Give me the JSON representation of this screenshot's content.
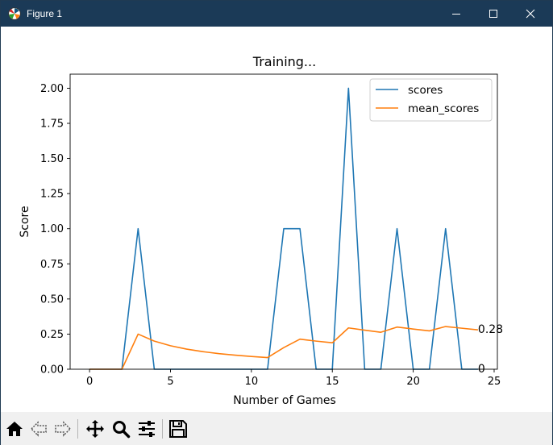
{
  "window": {
    "title": "Figure 1",
    "app_icon": "matplotlib-icon",
    "controls": [
      "minimize-icon",
      "maximize-icon",
      "close-icon"
    ]
  },
  "toolbar": {
    "buttons": [
      "home-icon",
      "back-arrow-icon",
      "forward-arrow-icon",
      "pan-move-icon",
      "zoom-magnifier-icon",
      "configure-subplots-icon",
      "save-floppy-icon"
    ]
  },
  "chart_data": {
    "type": "line",
    "title": "Training...",
    "xlabel": "Number of Games",
    "ylabel": "Score",
    "xlim": [
      -1.2,
      25.2
    ],
    "ylim": [
      0,
      2.1
    ],
    "xticks": [
      0,
      5,
      10,
      15,
      20,
      25
    ],
    "xtick_labels": [
      "0",
      "5",
      "10",
      "15",
      "20",
      "25"
    ],
    "yticks": [
      0,
      0.25,
      0.5,
      0.75,
      1.0,
      1.25,
      1.5,
      1.75,
      2.0
    ],
    "ytick_labels": [
      "0.00",
      "0.25",
      "0.50",
      "0.75",
      "1.00",
      "1.25",
      "1.50",
      "1.75",
      "2.00"
    ],
    "grid": false,
    "legend_position": "top-right",
    "x": [
      0,
      1,
      2,
      3,
      4,
      5,
      6,
      7,
      8,
      9,
      10,
      11,
      12,
      13,
      14,
      15,
      16,
      17,
      18,
      19,
      20,
      21,
      22,
      23,
      24
    ],
    "series": [
      {
        "name": "scores",
        "color": "#1f77b4",
        "values": [
          0,
          0,
          0,
          1,
          0,
          0,
          0,
          0,
          0,
          0,
          0,
          0,
          1,
          1,
          0,
          0,
          2,
          0,
          0,
          1,
          0,
          0,
          1,
          0,
          0
        ]
      },
      {
        "name": "mean_scores",
        "color": "#ff7f0e",
        "values": [
          0,
          0,
          0,
          0.25,
          0.2,
          0.167,
          0.143,
          0.125,
          0.111,
          0.1,
          0.091,
          0.083,
          0.154,
          0.214,
          0.2,
          0.188,
          0.294,
          0.278,
          0.263,
          0.3,
          0.286,
          0.273,
          0.304,
          0.292,
          0.28
        ]
      }
    ],
    "annotations": [
      {
        "x": 24,
        "y": 0.28,
        "text": "0.28"
      },
      {
        "x": 24,
        "y": 0,
        "text": "0"
      }
    ]
  }
}
